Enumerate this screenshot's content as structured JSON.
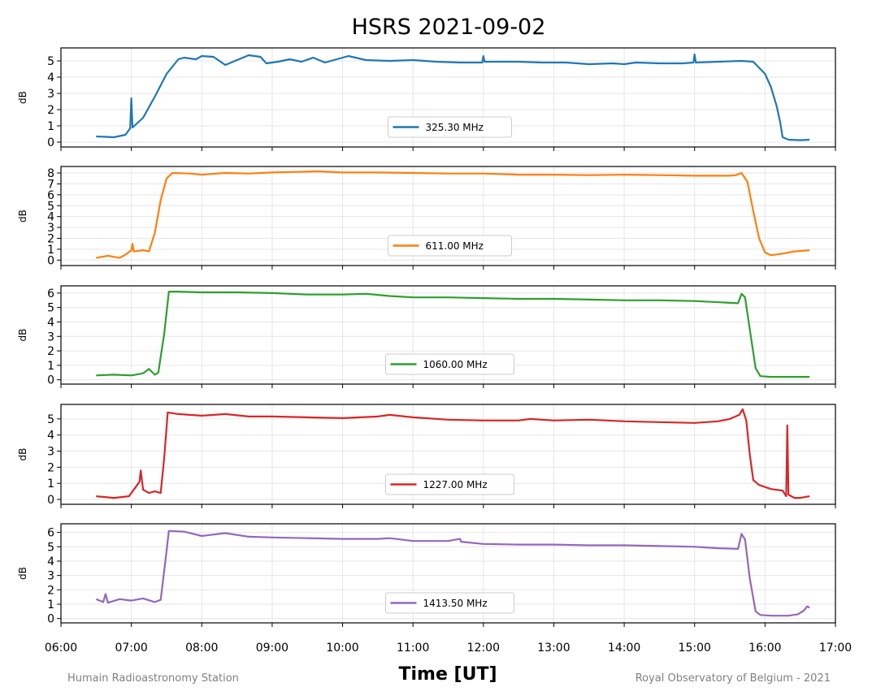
{
  "chart_data": {
    "type": "line",
    "title": "HSRS 2021-09-02",
    "xlabel": "Time [UT]",
    "ylabel": "dB",
    "x_ticks": [
      "06:00",
      "07:00",
      "08:00",
      "09:00",
      "10:00",
      "11:00",
      "12:00",
      "13:00",
      "14:00",
      "15:00",
      "16:00",
      "17:00"
    ],
    "xlim": [
      "06:00",
      "17:00"
    ],
    "grid": true,
    "legend_position": "lower center",
    "footer_left": "Humain Radioastronomy Station",
    "footer_right": "Royal Observatory of Belgium - 2021",
    "panels": [
      {
        "name": "325.30 MHz",
        "color": "#1f77b4",
        "ylim": [
          -0.3,
          5.8
        ],
        "yticks": [
          0,
          1,
          2,
          3,
          4,
          5
        ],
        "points": [
          [
            "06:30",
            0.35
          ],
          [
            "06:45",
            0.3
          ],
          [
            "06:55",
            0.45
          ],
          [
            "06:59",
            0.85
          ],
          [
            "07:00",
            2.7
          ],
          [
            "07:01",
            0.9
          ],
          [
            "07:10",
            1.5
          ],
          [
            "07:20",
            2.8
          ],
          [
            "07:30",
            4.2
          ],
          [
            "07:40",
            5.1
          ],
          [
            "07:45",
            5.2
          ],
          [
            "07:55",
            5.1
          ],
          [
            "08:00",
            5.3
          ],
          [
            "08:10",
            5.25
          ],
          [
            "08:20",
            4.75
          ],
          [
            "08:30",
            5.05
          ],
          [
            "08:40",
            5.35
          ],
          [
            "08:50",
            5.25
          ],
          [
            "08:55",
            4.85
          ],
          [
            "09:05",
            4.95
          ],
          [
            "09:15",
            5.1
          ],
          [
            "09:25",
            4.95
          ],
          [
            "09:35",
            5.2
          ],
          [
            "09:45",
            4.9
          ],
          [
            "09:55",
            5.1
          ],
          [
            "10:05",
            5.3
          ],
          [
            "10:20",
            5.05
          ],
          [
            "10:40",
            5.0
          ],
          [
            "11:00",
            5.05
          ],
          [
            "11:20",
            4.95
          ],
          [
            "11:40",
            4.9
          ],
          [
            "11:59",
            4.9
          ],
          [
            "12:00",
            5.3
          ],
          [
            "12:01",
            4.95
          ],
          [
            "12:30",
            4.95
          ],
          [
            "12:50",
            4.9
          ],
          [
            "13:10",
            4.9
          ],
          [
            "13:30",
            4.8
          ],
          [
            "13:50",
            4.85
          ],
          [
            "14:00",
            4.8
          ],
          [
            "14:10",
            4.9
          ],
          [
            "14:30",
            4.85
          ],
          [
            "14:50",
            4.85
          ],
          [
            "14:59",
            4.9
          ],
          [
            "15:00",
            5.4
          ],
          [
            "15:01",
            4.9
          ],
          [
            "15:20",
            4.95
          ],
          [
            "15:40",
            5.0
          ],
          [
            "15:50",
            4.95
          ],
          [
            "16:00",
            4.2
          ],
          [
            "16:05",
            3.4
          ],
          [
            "16:10",
            2.2
          ],
          [
            "16:13",
            1.2
          ],
          [
            "16:15",
            0.3
          ],
          [
            "16:20",
            0.15
          ],
          [
            "16:30",
            0.12
          ],
          [
            "16:38",
            0.15
          ]
        ]
      },
      {
        "name": "611.00 MHz",
        "color": "#ff7f0e",
        "ylim": [
          -0.5,
          8.6
        ],
        "yticks": [
          0,
          1,
          2,
          3,
          4,
          5,
          6,
          7,
          8
        ],
        "points": [
          [
            "06:30",
            0.2
          ],
          [
            "06:40",
            0.4
          ],
          [
            "06:50",
            0.2
          ],
          [
            "06:55",
            0.5
          ],
          [
            "07:00",
            0.9
          ],
          [
            "07:01",
            1.5
          ],
          [
            "07:02",
            0.8
          ],
          [
            "07:10",
            0.9
          ],
          [
            "07:15",
            0.8
          ],
          [
            "07:20",
            2.5
          ],
          [
            "07:25",
            5.5
          ],
          [
            "07:30",
            7.5
          ],
          [
            "07:35",
            8.0
          ],
          [
            "07:50",
            7.95
          ],
          [
            "08:00",
            7.85
          ],
          [
            "08:20",
            8.0
          ],
          [
            "08:40",
            7.95
          ],
          [
            "09:00",
            8.05
          ],
          [
            "09:20",
            8.1
          ],
          [
            "09:40",
            8.15
          ],
          [
            "10:00",
            8.05
          ],
          [
            "10:30",
            8.05
          ],
          [
            "11:00",
            8.0
          ],
          [
            "11:30",
            7.95
          ],
          [
            "12:00",
            7.95
          ],
          [
            "12:30",
            7.85
          ],
          [
            "13:00",
            7.85
          ],
          [
            "13:30",
            7.8
          ],
          [
            "14:00",
            7.85
          ],
          [
            "14:30",
            7.8
          ],
          [
            "15:00",
            7.75
          ],
          [
            "15:30",
            7.75
          ],
          [
            "15:35",
            7.8
          ],
          [
            "15:40",
            8.0
          ],
          [
            "15:45",
            7.2
          ],
          [
            "15:50",
            4.5
          ],
          [
            "15:55",
            2.0
          ],
          [
            "16:00",
            0.7
          ],
          [
            "16:05",
            0.45
          ],
          [
            "16:15",
            0.6
          ],
          [
            "16:25",
            0.8
          ],
          [
            "16:38",
            0.9
          ]
        ]
      },
      {
        "name": "1060.00 MHz",
        "color": "#2ca02c",
        "ylim": [
          -0.3,
          6.5
        ],
        "yticks": [
          0,
          1,
          2,
          3,
          4,
          5,
          6
        ],
        "points": [
          [
            "06:30",
            0.3
          ],
          [
            "06:45",
            0.35
          ],
          [
            "07:00",
            0.3
          ],
          [
            "07:10",
            0.45
          ],
          [
            "07:15",
            0.75
          ],
          [
            "07:20",
            0.35
          ],
          [
            "07:23",
            0.5
          ],
          [
            "07:28",
            3.2
          ],
          [
            "07:32",
            6.1
          ],
          [
            "07:40",
            6.1
          ],
          [
            "08:00",
            6.05
          ],
          [
            "08:30",
            6.05
          ],
          [
            "09:00",
            6.0
          ],
          [
            "09:30",
            5.9
          ],
          [
            "10:00",
            5.9
          ],
          [
            "10:20",
            5.95
          ],
          [
            "10:40",
            5.8
          ],
          [
            "11:00",
            5.7
          ],
          [
            "11:30",
            5.7
          ],
          [
            "12:00",
            5.65
          ],
          [
            "12:30",
            5.6
          ],
          [
            "13:00",
            5.6
          ],
          [
            "13:30",
            5.55
          ],
          [
            "14:00",
            5.5
          ],
          [
            "14:30",
            5.5
          ],
          [
            "15:00",
            5.45
          ],
          [
            "15:25",
            5.35
          ],
          [
            "15:37",
            5.3
          ],
          [
            "15:40",
            5.95
          ],
          [
            "15:43",
            5.7
          ],
          [
            "15:47",
            3.5
          ],
          [
            "15:52",
            0.8
          ],
          [
            "15:56",
            0.25
          ],
          [
            "16:05",
            0.2
          ],
          [
            "16:20",
            0.2
          ],
          [
            "16:38",
            0.2
          ]
        ]
      },
      {
        "name": "1227.00 MHz",
        "color": "#d62728",
        "ylim": [
          -0.3,
          5.9
        ],
        "yticks": [
          0,
          1,
          2,
          3,
          4,
          5
        ],
        "points": [
          [
            "06:30",
            0.2
          ],
          [
            "06:45",
            0.1
          ],
          [
            "06:58",
            0.2
          ],
          [
            "07:03",
            0.7
          ],
          [
            "07:07",
            1.1
          ],
          [
            "07:08",
            1.8
          ],
          [
            "07:10",
            0.6
          ],
          [
            "07:15",
            0.4
          ],
          [
            "07:20",
            0.5
          ],
          [
            "07:25",
            0.4
          ],
          [
            "07:28",
            2.6
          ],
          [
            "07:31",
            5.4
          ],
          [
            "07:40",
            5.3
          ],
          [
            "08:00",
            5.2
          ],
          [
            "08:20",
            5.3
          ],
          [
            "08:40",
            5.15
          ],
          [
            "09:00",
            5.15
          ],
          [
            "09:30",
            5.1
          ],
          [
            "10:00",
            5.05
          ],
          [
            "10:30",
            5.15
          ],
          [
            "10:40",
            5.25
          ],
          [
            "11:00",
            5.1
          ],
          [
            "11:30",
            4.95
          ],
          [
            "12:00",
            4.9
          ],
          [
            "12:30",
            4.9
          ],
          [
            "12:40",
            5.0
          ],
          [
            "13:00",
            4.9
          ],
          [
            "13:30",
            4.95
          ],
          [
            "14:00",
            4.85
          ],
          [
            "14:30",
            4.8
          ],
          [
            "15:00",
            4.75
          ],
          [
            "15:20",
            4.85
          ],
          [
            "15:30",
            5.0
          ],
          [
            "15:38",
            5.25
          ],
          [
            "15:41",
            5.6
          ],
          [
            "15:44",
            4.9
          ],
          [
            "15:47",
            2.8
          ],
          [
            "15:50",
            1.2
          ],
          [
            "15:55",
            0.9
          ],
          [
            "16:05",
            0.65
          ],
          [
            "16:15",
            0.55
          ],
          [
            "16:18",
            0.2
          ],
          [
            "16:19",
            4.6
          ],
          [
            "16:20",
            0.3
          ],
          [
            "16:25",
            0.1
          ],
          [
            "16:30",
            0.1
          ],
          [
            "16:38",
            0.2
          ]
        ]
      },
      {
        "name": "1413.50 MHz",
        "color": "#9467bd",
        "ylim": [
          -0.3,
          6.6
        ],
        "yticks": [
          0,
          1,
          2,
          3,
          4,
          5,
          6
        ],
        "points": [
          [
            "06:30",
            1.35
          ],
          [
            "06:36",
            1.15
          ],
          [
            "06:38",
            1.7
          ],
          [
            "06:40",
            1.1
          ],
          [
            "06:50",
            1.35
          ],
          [
            "07:00",
            1.25
          ],
          [
            "07:10",
            1.4
          ],
          [
            "07:20",
            1.15
          ],
          [
            "07:25",
            1.3
          ],
          [
            "07:29",
            4.0
          ],
          [
            "07:32",
            6.1
          ],
          [
            "07:45",
            6.05
          ],
          [
            "08:00",
            5.75
          ],
          [
            "08:20",
            5.95
          ],
          [
            "08:40",
            5.7
          ],
          [
            "09:00",
            5.65
          ],
          [
            "09:30",
            5.6
          ],
          [
            "10:00",
            5.55
          ],
          [
            "10:30",
            5.55
          ],
          [
            "10:40",
            5.6
          ],
          [
            "11:00",
            5.4
          ],
          [
            "11:30",
            5.4
          ],
          [
            "11:40",
            5.55
          ],
          [
            "11:41",
            5.35
          ],
          [
            "12:00",
            5.2
          ],
          [
            "12:30",
            5.15
          ],
          [
            "13:00",
            5.15
          ],
          [
            "13:30",
            5.1
          ],
          [
            "14:00",
            5.1
          ],
          [
            "14:30",
            5.05
          ],
          [
            "15:00",
            5.0
          ],
          [
            "15:20",
            4.9
          ],
          [
            "15:37",
            4.85
          ],
          [
            "15:40",
            5.9
          ],
          [
            "15:43",
            5.5
          ],
          [
            "15:47",
            2.8
          ],
          [
            "15:52",
            0.5
          ],
          [
            "15:56",
            0.25
          ],
          [
            "16:05",
            0.2
          ],
          [
            "16:20",
            0.2
          ],
          [
            "16:28",
            0.3
          ],
          [
            "16:33",
            0.55
          ],
          [
            "16:36",
            0.85
          ],
          [
            "16:38",
            0.75
          ]
        ]
      }
    ]
  }
}
